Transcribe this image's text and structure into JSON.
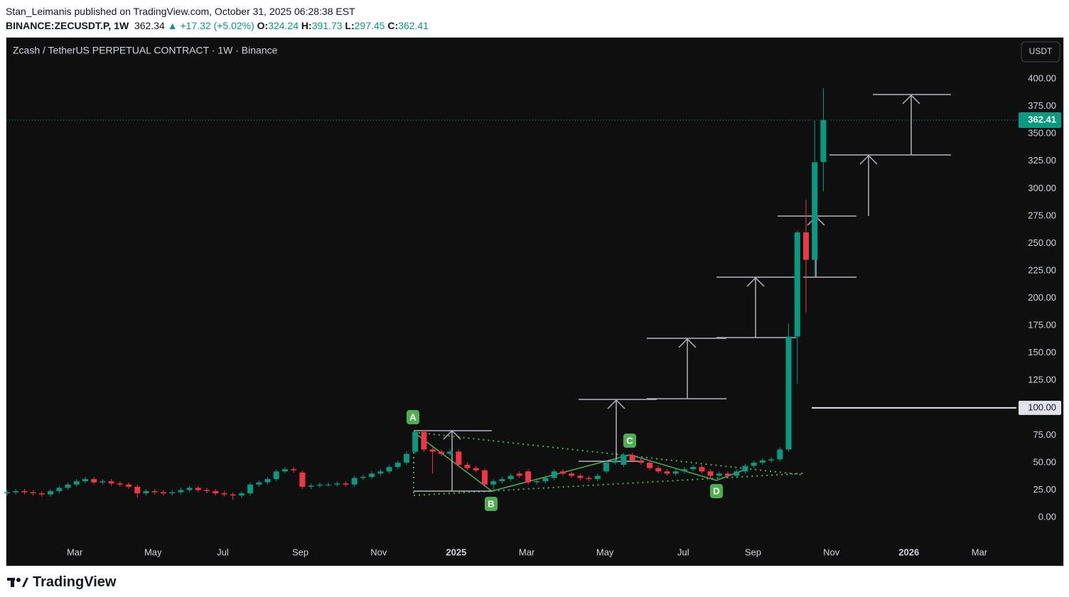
{
  "header": {
    "publisher": "Stan_Leimanis published on TradingView.com, October 31, 2025 06:28:38 EST",
    "symbol": "BINANCE:ZECUSDT.P, 1W",
    "price": "362.34",
    "arrow": "▲",
    "change": "+17.32 (+5.02%)",
    "o_label": "O:",
    "o_value": "324.24",
    "h_label": "H:",
    "h_value": "391.73",
    "l_label": "L:",
    "l_value": "297.45",
    "c_label": "C:",
    "c_value": "362.41"
  },
  "footer": {
    "brand": "TradingView"
  },
  "chart_data": {
    "type": "candlestick",
    "title": "Zcash / TetherUS PERPETUAL CONTRACT · 1W · Binance",
    "currency": "USDT",
    "up_color": "#089981",
    "down_color": "#f23645",
    "grid": true,
    "open": [
      22,
      23,
      24,
      23,
      22,
      21,
      24,
      27,
      30,
      33,
      35,
      32,
      33,
      31,
      30,
      28,
      22,
      24,
      23,
      22,
      23,
      25,
      27,
      25,
      24,
      22,
      21,
      20,
      22,
      30,
      32,
      35,
      42,
      44,
      41,
      28,
      29,
      30,
      30,
      31,
      30,
      36,
      37,
      40,
      42,
      46,
      50,
      60,
      78,
      62,
      60,
      58,
      60,
      48,
      45,
      43,
      30,
      33,
      35,
      40,
      42,
      32,
      33,
      36,
      42,
      40,
      38,
      36,
      35,
      42,
      50,
      48,
      57,
      52,
      50,
      45,
      42,
      40,
      42,
      44,
      46,
      42,
      38,
      40,
      38,
      42,
      47,
      50,
      52,
      53,
      62,
      165,
      260,
      235,
      324.24
    ],
    "high": [
      25,
      26,
      26,
      25,
      24,
      26,
      29,
      32,
      35,
      37,
      37,
      35,
      35,
      33,
      32,
      30,
      26,
      26,
      25,
      25,
      27,
      29,
      29,
      27,
      26,
      24,
      23,
      24,
      32,
      34,
      37,
      44,
      46,
      46,
      43,
      31,
      32,
      32,
      33,
      33,
      38,
      39,
      42,
      44,
      48,
      52,
      60,
      80,
      80,
      64,
      62,
      62,
      62,
      50,
      47,
      45,
      35,
      37,
      40,
      42,
      44,
      35,
      38,
      44,
      44,
      42,
      40,
      38,
      40,
      52,
      54,
      59,
      59,
      54,
      52,
      47,
      44,
      44,
      46,
      48,
      48,
      44,
      42,
      42,
      44,
      49,
      52,
      54,
      55,
      64,
      177,
      262,
      290,
      362,
      391.73
    ],
    "low": [
      20,
      21,
      21,
      20,
      19,
      19,
      22,
      25,
      28,
      31,
      30,
      30,
      29,
      28,
      26,
      18,
      20,
      21,
      20,
      20,
      21,
      23,
      23,
      22,
      20,
      19,
      16,
      18,
      20,
      28,
      30,
      33,
      40,
      41,
      26,
      26,
      27,
      28,
      28,
      28,
      28,
      34,
      35,
      38,
      40,
      44,
      48,
      58,
      60,
      40,
      56,
      56,
      46,
      43,
      41,
      28,
      25,
      31,
      33,
      36,
      30,
      30,
      31,
      34,
      38,
      36,
      34,
      33,
      33,
      40,
      48,
      46,
      50,
      48,
      43,
      40,
      38,
      38,
      40,
      42,
      40,
      36,
      36,
      36,
      36,
      40,
      45,
      48,
      50,
      51,
      60,
      122,
      187,
      220,
      297.45
    ],
    "close": [
      23,
      24,
      23,
      22,
      21,
      24,
      27,
      30,
      33,
      35,
      32,
      33,
      31,
      30,
      28,
      22,
      24,
      23,
      22,
      23,
      25,
      27,
      25,
      24,
      22,
      21,
      20,
      22,
      30,
      32,
      35,
      42,
      44,
      43,
      28,
      29,
      30,
      30,
      31,
      30,
      36,
      37,
      40,
      42,
      46,
      50,
      58,
      78,
      62,
      60,
      58,
      60,
      48,
      45,
      43,
      30,
      33,
      35,
      38,
      38,
      32,
      33,
      36,
      42,
      40,
      38,
      36,
      35,
      38,
      50,
      52,
      57,
      52,
      50,
      45,
      42,
      40,
      42,
      44,
      46,
      42,
      38,
      40,
      38,
      42,
      47,
      50,
      52,
      53,
      62,
      165,
      260,
      235,
      324,
      362.41
    ],
    "xlim": [
      -0.164,
      116.23
    ],
    "xticks": [
      {
        "value": 7.79,
        "label": "Mar"
      },
      {
        "value": 16.8,
        "label": "May"
      },
      {
        "value": 24.84,
        "label": "Jul"
      },
      {
        "value": 33.77,
        "label": "Sep"
      },
      {
        "value": 42.79,
        "label": "Nov"
      },
      {
        "value": 51.72,
        "label": "2025"
      },
      {
        "value": 59.84,
        "label": "Mar"
      },
      {
        "value": 68.85,
        "label": "May"
      },
      {
        "value": 77.87,
        "label": "Jul"
      },
      {
        "value": 85.9,
        "label": "Sep"
      },
      {
        "value": 94.92,
        "label": "Nov"
      },
      {
        "value": 103.85,
        "label": "2026"
      },
      {
        "value": 111.97,
        "label": "Mar"
      }
    ],
    "ylim": [
      -20.7,
      438.3
    ],
    "yticks": [
      {
        "value": 0,
        "label": "0.00"
      },
      {
        "value": 25,
        "label": "25.00"
      },
      {
        "value": 50,
        "label": "50.00"
      },
      {
        "value": 75,
        "label": "75.00"
      },
      {
        "value": 100,
        "label": "100.00"
      },
      {
        "value": 125,
        "label": "125.00"
      },
      {
        "value": 150,
        "label": "150.00"
      },
      {
        "value": 175,
        "label": "175.00"
      },
      {
        "value": 200,
        "label": "200.00"
      },
      {
        "value": 225,
        "label": "225.00"
      },
      {
        "value": 250,
        "label": "250.00"
      },
      {
        "value": 275,
        "label": "275.00"
      },
      {
        "value": 300,
        "label": "300.00"
      },
      {
        "value": 325,
        "label": "325.00"
      },
      {
        "value": 350,
        "label": "350.00"
      },
      {
        "value": 375,
        "label": "375.00"
      },
      {
        "value": 400,
        "label": "400.00"
      }
    ],
    "price_line": {
      "value": 100,
      "label": "100.00"
    },
    "annotations": [
      "A",
      "B",
      "C",
      "D"
    ]
  }
}
